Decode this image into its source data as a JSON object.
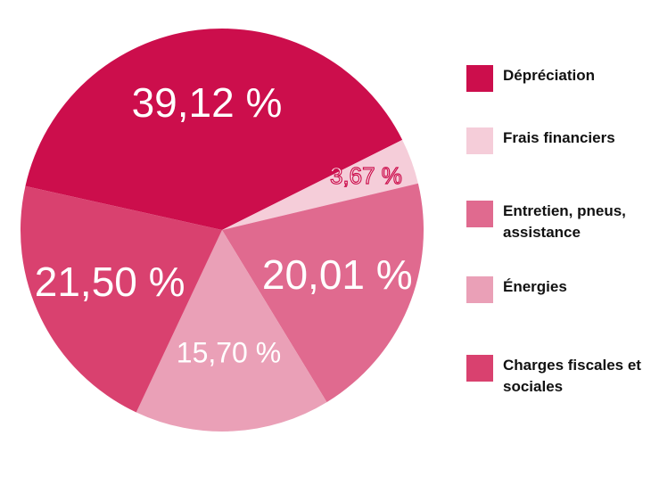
{
  "chart_data": {
    "type": "pie",
    "categories": [
      "Dépréciation",
      "Frais financiers",
      "Entretien, pneus, assistance",
      "Énergies",
      "Charges fiscales et sociales"
    ],
    "values": [
      39.12,
      3.67,
      20.01,
      15.7,
      21.5
    ],
    "value_labels": [
      "39,12 %",
      "3,67 %",
      "20,01 %",
      "15,70 %",
      "21,50 %"
    ],
    "colors": [
      "#cc0e4c",
      "#f5cdd9",
      "#e06a8f",
      "#eaa0b7",
      "#d9416f"
    ],
    "legend": "right"
  }
}
